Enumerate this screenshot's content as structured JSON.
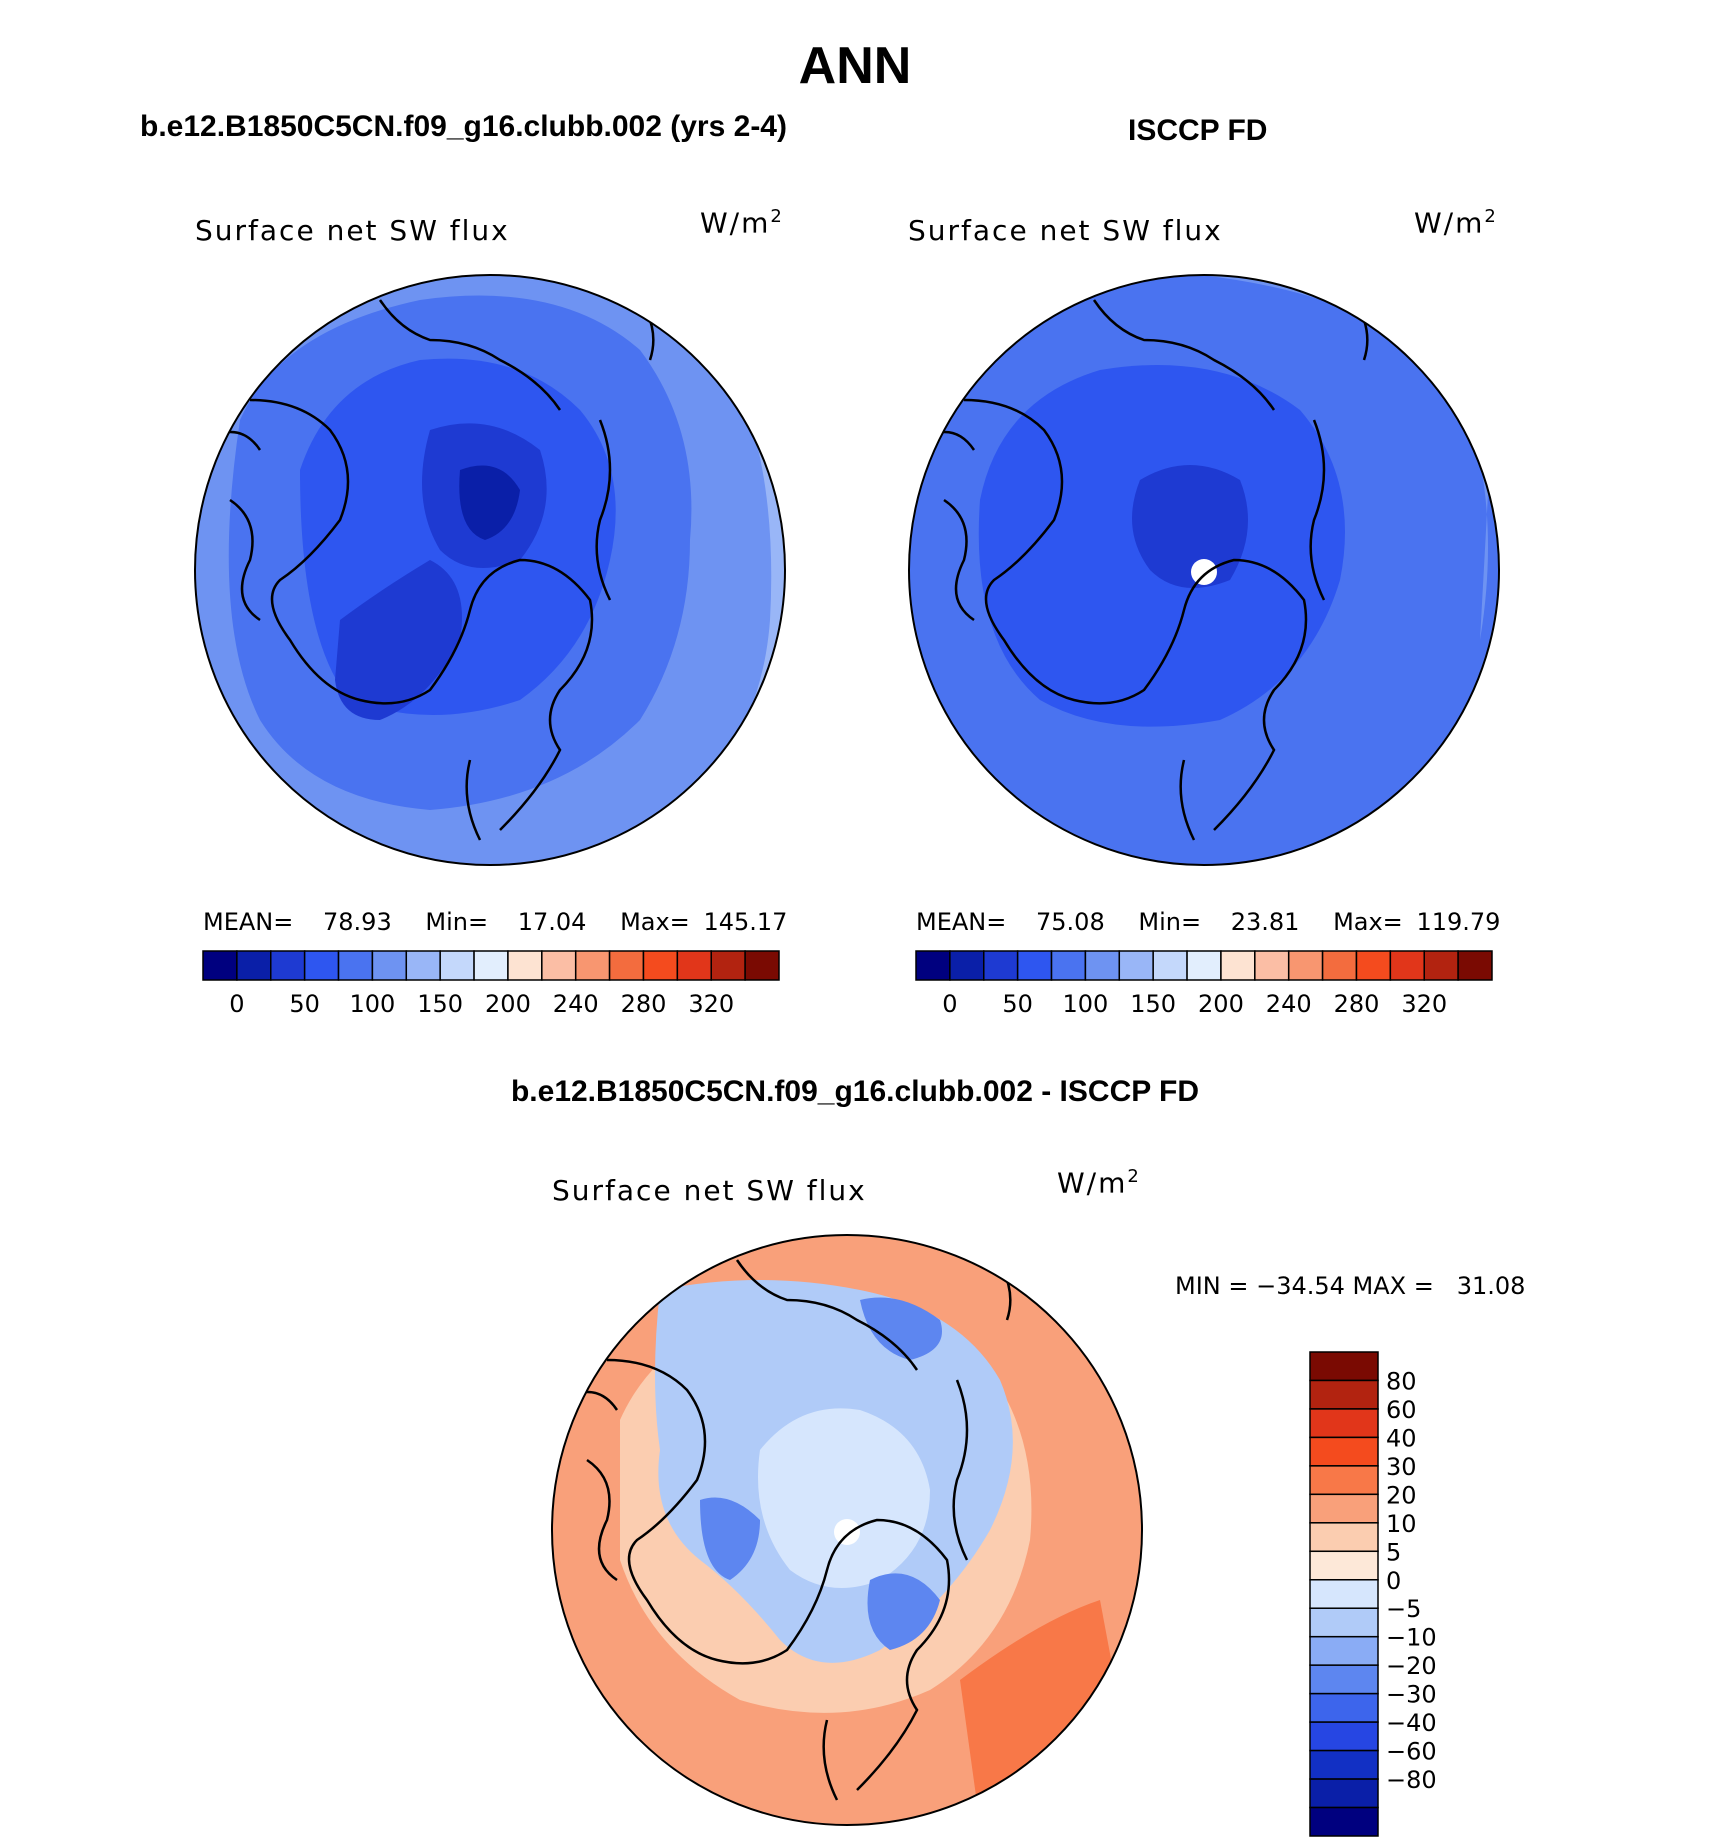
{
  "page_title": "ANN",
  "colors": {
    "full_palette": [
      "#00007f",
      "#0a1fa8",
      "#1e3ad2",
      "#2e56f0",
      "#4a73f0",
      "#6e93f2",
      "#99b6f7",
      "#c4d8fb",
      "#e2eefd",
      "#fde3d2",
      "#fbbea5",
      "#f89670",
      "#f36c3e",
      "#f44b1e",
      "#e1361a",
      "#b22310",
      "#7a0a02"
    ],
    "diff_palette": [
      "#7a0a02",
      "#b22310",
      "#e1361a",
      "#f44b1e",
      "#f87848",
      "#f9a07a",
      "#fbcdb0",
      "#fde8d8",
      "#d6e6fd",
      "#b0cbf8",
      "#8aacf5",
      "#5d86f0",
      "#3d65ec",
      "#2646e3",
      "#1230c4",
      "#0a1fa8",
      "#00007f"
    ]
  },
  "panels": {
    "left": {
      "title": "b.e12.B1850C5CN.f09_g16.clubb.002 (yrs 2-4)",
      "variable": "Surface net SW flux",
      "units": "W/m",
      "units_superscript": "2",
      "mean_label": "MEAN=",
      "mean": "78.93",
      "min_label": "Min=",
      "min": "17.04",
      "max_label": "Max=",
      "max": "145.17"
    },
    "right": {
      "title": "ISCCP FD",
      "variable": "Surface net SW flux",
      "units": "W/m",
      "units_superscript": "2",
      "mean_label": "MEAN=",
      "mean": "75.08",
      "min_label": "Min=",
      "min": "23.81",
      "max_label": "Max=",
      "max": "119.79"
    },
    "diff": {
      "title": "b.e12.B1850C5CN.f09_g16.clubb.002 - ISCCP FD",
      "variable": "Surface net SW flux",
      "units": "W/m",
      "units_superscript": "2",
      "minmax_text": "MIN = −34.54 MAX =   31.08"
    }
  },
  "chart_data": {
    "type": "map",
    "projection": "north polar stereographic",
    "plots": [
      {
        "name": "model",
        "title": "b.e12.B1850C5CN.f09_g16.clubb.002 (yrs 2-4)",
        "field": "Surface net SW flux",
        "units": "W/m2",
        "mean": 78.93,
        "min": 17.04,
        "max": 145.17
      },
      {
        "name": "obs",
        "title": "ISCCP FD",
        "field": "Surface net SW flux",
        "units": "W/m2",
        "mean": 75.08,
        "min": 23.81,
        "max": 119.79
      },
      {
        "name": "difference",
        "title": "b.e12.B1850C5CN.f09_g16.clubb.002 - ISCCP FD",
        "field": "Surface net SW flux",
        "units": "W/m2",
        "min": -34.54,
        "max": 31.08
      }
    ],
    "full_colorbar_labels": [
      "0",
      "50",
      "100",
      "150",
      "200",
      "240",
      "280",
      "320"
    ],
    "diff_colorbar_labels": [
      "80",
      "60",
      "40",
      "30",
      "20",
      "10",
      "5",
      "0",
      "−5",
      "−10",
      "−20",
      "−30",
      "−40",
      "−60",
      "−80"
    ]
  }
}
